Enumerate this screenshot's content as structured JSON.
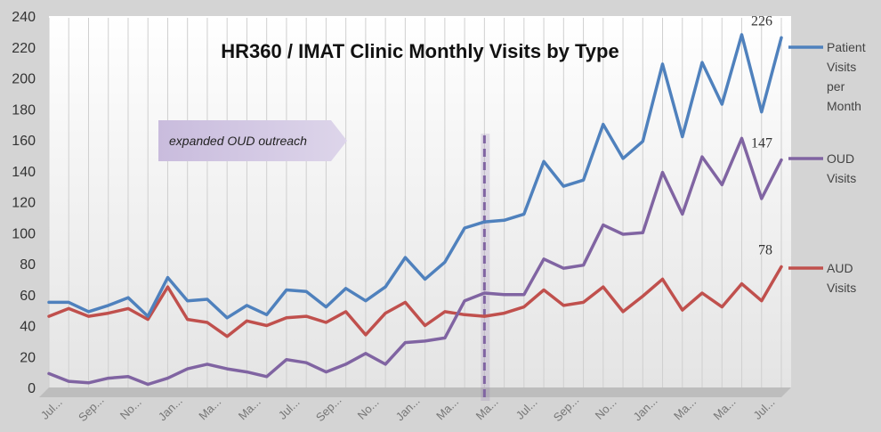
{
  "chart_data": {
    "type": "line",
    "title": "HR360 / IMAT Clinic Monthly Visits by Type",
    "ylim": [
      0,
      240
    ],
    "yticks": [
      0,
      20,
      40,
      60,
      80,
      100,
      120,
      140,
      160,
      180,
      200,
      220,
      240
    ],
    "grid": "vertical lines at each month",
    "legend_placement": "right",
    "x_tick_labels": [
      "Jul...",
      "Sep...",
      "No...",
      "Jan...",
      "Ma...",
      "Ma...",
      "Jul...",
      "Sep...",
      "No...",
      "Jan...",
      "Ma...",
      "Ma...",
      "Jul...",
      "Sep...",
      "No...",
      "Jan...",
      "Ma...",
      "Ma...",
      "Jul..."
    ],
    "annotation": "expanded OUD outreach",
    "annotation_x_index": 22,
    "series": [
      {
        "name": "Patient Visits per Month",
        "color": "#4f81bd",
        "end_label": "226",
        "values": [
          55,
          55,
          49,
          53,
          58,
          46,
          71,
          56,
          57,
          45,
          53,
          47,
          63,
          62,
          52,
          64,
          56,
          65,
          84,
          70,
          81,
          103,
          107,
          108,
          112,
          146,
          130,
          134,
          170,
          148,
          159,
          209,
          162,
          210,
          183,
          228,
          178,
          226
        ]
      },
      {
        "name": "OUD Visits",
        "color": "#8064a2",
        "end_label": "147",
        "values": [
          9,
          4,
          3,
          6,
          7,
          2,
          6,
          12,
          15,
          12,
          10,
          7,
          18,
          16,
          10,
          15,
          22,
          15,
          29,
          30,
          32,
          56,
          61,
          60,
          60,
          83,
          77,
          79,
          105,
          99,
          100,
          139,
          112,
          149,
          131,
          161,
          122,
          147
        ]
      },
      {
        "name": "AUD Visits",
        "color": "#c0504d",
        "end_label": "78",
        "values": [
          46,
          51,
          46,
          48,
          51,
          44,
          65,
          44,
          42,
          33,
          43,
          40,
          45,
          46,
          42,
          49,
          34,
          48,
          55,
          40,
          49,
          47,
          46,
          48,
          52,
          63,
          53,
          55,
          65,
          49,
          59,
          70,
          50,
          61,
          52,
          67,
          56,
          78
        ]
      }
    ]
  }
}
